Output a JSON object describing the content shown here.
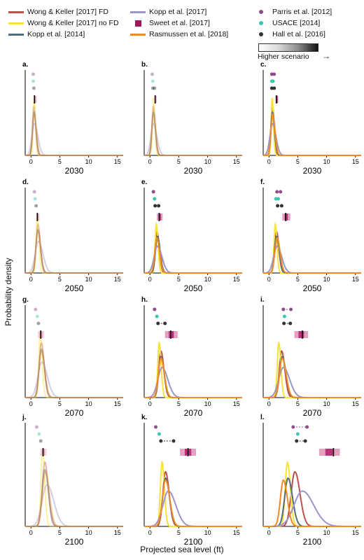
{
  "legend": {
    "col1": [
      {
        "label": "Wong & Keller [2017] FD",
        "color": "#c0504d"
      },
      {
        "label": "Wong & Keller [2017] no FD",
        "color": "#f5e23a"
      },
      {
        "label": "Kopp et al. [2014]",
        "color": "#4f6d7a"
      }
    ],
    "col2": [
      {
        "label": "Kopp et al. [2017]",
        "color": "#9d94c8"
      },
      {
        "label": "Sweet et al. [2017]",
        "color": "#a0155b"
      },
      {
        "label": "Rasmussen et al. [2018]",
        "color": "#f08a24"
      }
    ],
    "col3": [
      {
        "label": "Parris et al. [2012]",
        "color": "#8e4e8a"
      },
      {
        "label": "USACE [2014]",
        "color": "#3ec5b4"
      },
      {
        "label": "Hall et al. [2016]",
        "color": "#333333"
      }
    ],
    "scenario_label": "Higher scenario",
    "scenario_arrow": "→"
  },
  "ylabel": "Probability density",
  "xlabel": "Projected sea level (ft)",
  "chart_data": [
    {
      "panel": "a.",
      "type": "line",
      "xlabel": "2030",
      "xlim": [
        -1,
        16
      ],
      "xticks": [
        0,
        5,
        10,
        15
      ],
      "series_shown": [
        "Wong & Keller [2017] FD",
        "Wong & Keller [2017] no FD",
        "Kopp et al. [2014]",
        "Kopp et al. [2017]",
        "Rasmussen et al. [2018]"
      ],
      "faded": true,
      "density_peaks_ft": [
        0.5,
        0.55,
        0.55,
        0.6,
        0.55
      ],
      "parris_ft": [
        0.4
      ],
      "usace_ft": [
        0.4
      ],
      "hall_ft": [
        0.5
      ],
      "sweet_range_ft": [
        0.5,
        0.9
      ],
      "sweet_ft": 0.6
    },
    {
      "panel": "b.",
      "type": "line",
      "xlabel": "2030",
      "xlim": [
        -1,
        16
      ],
      "xticks": [
        0,
        5,
        10,
        15
      ],
      "series_shown": [
        "Wong & Keller [2017] FD",
        "Wong & Keller [2017] no FD",
        "Kopp et al. [2014]",
        "Kopp et al. [2017]",
        "Rasmussen et al. [2018]"
      ],
      "faded": true,
      "density_peaks_ft": [
        0.6,
        0.6,
        0.6,
        0.6,
        0.6
      ],
      "parris_ft": [
        0.4
      ],
      "usace_ft": [
        0.5
      ],
      "hall_ft": [
        0.5,
        0.8
      ],
      "sweet_range_ft": [
        0.7,
        1.2
      ],
      "sweet_ft": 0.9
    },
    {
      "panel": "c.",
      "type": "line",
      "xlabel": "2030",
      "xlim": [
        -1,
        16
      ],
      "xticks": [
        0,
        5,
        10,
        15
      ],
      "series_shown": [
        "Wong & Keller [2017] FD",
        "Wong & Keller [2017] no FD",
        "Kopp et al. [2014]",
        "Kopp et al. [2017]",
        "Rasmussen et al. [2018]"
      ],
      "faded": false,
      "density_peaks_ft": [
        0.6,
        0.55,
        0.6,
        0.6,
        0.65
      ],
      "parris_ft": [
        0.5,
        0.9
      ],
      "usace_ft": [
        0.5,
        0.7
      ],
      "hall_ft": [
        0.5,
        0.9
      ],
      "sweet_range_ft": [
        1.1,
        1.6
      ],
      "sweet_ft": 1.3
    },
    {
      "panel": "d.",
      "type": "line",
      "xlabel": "2050",
      "xlim": [
        -1,
        16
      ],
      "xticks": [
        0,
        5,
        10,
        15
      ],
      "series_shown": [
        "Wong & Keller [2017] FD",
        "Wong & Keller [2017] no FD",
        "Kopp et al. [2014]",
        "Kopp et al. [2017]",
        "Rasmussen et al. [2018]"
      ],
      "faded": true,
      "density_peaks_ft": [
        1.2,
        1.1,
        1.2,
        1.3,
        1.2
      ],
      "parris_ft": [
        0.6
      ],
      "usace_ft": [
        0.7
      ],
      "hall_ft": [
        0.9
      ],
      "sweet_range_ft": [
        0.9,
        1.5
      ],
      "sweet_ft": 1.1
    },
    {
      "panel": "e.",
      "type": "line",
      "xlabel": "2050",
      "xlim": [
        -1,
        16
      ],
      "xticks": [
        0,
        5,
        10,
        15
      ],
      "series_shown": [
        "Wong & Keller [2017] FD",
        "Wong & Keller [2017] no FD",
        "Kopp et al. [2014]",
        "Kopp et al. [2017]",
        "Rasmussen et al. [2018]"
      ],
      "faded": false,
      "density_peaks_ft": [
        1.2,
        1.1,
        1.3,
        1.3,
        1.2
      ],
      "parris_ft": [
        0.6
      ],
      "usace_ft": [
        0.8
      ],
      "hall_ft": [
        0.9,
        1.5
      ],
      "sweet_range_ft": [
        1.2,
        2.2
      ],
      "sweet_ft": 1.6
    },
    {
      "panel": "f.",
      "type": "line",
      "xlabel": "2050",
      "xlim": [
        -1,
        16
      ],
      "xticks": [
        0,
        5,
        10,
        15
      ],
      "series_shown": [
        "Wong & Keller [2017] FD",
        "Wong & Keller [2017] no FD",
        "Kopp et al. [2014]",
        "Kopp et al. [2017]",
        "Rasmussen et al. [2018]"
      ],
      "faded": false,
      "density_peaks_ft": [
        1.3,
        1.1,
        1.3,
        1.4,
        1.4
      ],
      "parris_ft": [
        1.4,
        2.0
      ],
      "usace_ft": [
        1.2,
        1.6
      ],
      "hall_ft": [
        1.5,
        2.2
      ],
      "sweet_range_ft": [
        2.3,
        3.7
      ],
      "sweet_ft": 2.9
    },
    {
      "panel": "g.",
      "type": "line",
      "xlabel": "2070",
      "xlim": [
        -1,
        16
      ],
      "xticks": [
        0,
        5,
        10,
        15
      ],
      "series_shown": [
        "Wong & Keller [2017] FD",
        "Wong & Keller [2017] no FD",
        "Kopp et al. [2014]",
        "Kopp et al. [2017]",
        "Rasmussen et al. [2018]"
      ],
      "faded": true,
      "density_peaks_ft": [
        1.8,
        1.6,
        1.8,
        1.9,
        1.8
      ],
      "parris_ft": [
        0.8
      ],
      "usace_ft": [
        1.1
      ],
      "hall_ft": [
        1.3
      ],
      "sweet_range_ft": [
        1.2,
        2.3
      ],
      "sweet_ft": 1.7
    },
    {
      "panel": "h.",
      "type": "line",
      "xlabel": "2070",
      "xlim": [
        -1,
        16
      ],
      "xticks": [
        0,
        5,
        10,
        15
      ],
      "series_shown": [
        "Wong & Keller [2017] FD",
        "Wong & Keller [2017] no FD",
        "Kopp et al. [2014]",
        "Kopp et al. [2017]",
        "Rasmussen et al. [2018]"
      ],
      "faded": false,
      "density_peaks_ft": [
        1.9,
        1.6,
        1.9,
        2.1,
        1.9
      ],
      "parris_ft": [
        0.8
      ],
      "usace_ft": [
        1.2
      ],
      "hall_ft": [
        1.4,
        2.6
      ],
      "sweet_range_ft": [
        2.6,
        4.8
      ],
      "sweet_ft": 3.6
    },
    {
      "panel": "i.",
      "type": "line",
      "xlabel": "2070",
      "xlim": [
        -1,
        16
      ],
      "xticks": [
        0,
        5,
        10,
        15
      ],
      "series_shown": [
        "Wong & Keller [2017] FD",
        "Wong & Keller [2017] no FD",
        "Kopp et al. [2014]",
        "Kopp et al. [2017]",
        "Rasmussen et al. [2018]"
      ],
      "faded": false,
      "density_peaks_ft": [
        2.2,
        1.7,
        2.3,
        2.5,
        2.3
      ],
      "parris_ft": [
        2.5,
        3.8
      ],
      "usace_ft": [
        2.7
      ],
      "hall_ft": [
        2.6,
        3.7
      ],
      "sweet_range_ft": [
        4.4,
        6.8
      ],
      "sweet_ft": 5.8
    },
    {
      "panel": "j.",
      "type": "line",
      "xlabel": "2100",
      "xlim": [
        -1,
        16
      ],
      "xticks": [
        0,
        5,
        10,
        15
      ],
      "series_shown": [
        "Wong & Keller [2017] FD",
        "Wong & Keller [2017] no FD",
        "Kopp et al. [2014]",
        "Kopp et al. [2017]",
        "Rasmussen et al. [2018]"
      ],
      "faded": true,
      "density_peaks_ft": [
        2.4,
        2.0,
        2.4,
        2.8,
        2.5
      ],
      "parris_ft": [
        1.0
      ],
      "usace_ft": [
        1.4
      ],
      "hall_ft": [
        1.7
      ],
      "sweet_range_ft": [
        1.6,
        2.7
      ],
      "sweet_ft": 2.1
    },
    {
      "panel": "k.",
      "type": "line",
      "xlabel": "2100",
      "xlim": [
        -1,
        16
      ],
      "xticks": [
        0,
        5,
        10,
        15
      ],
      "series_shown": [
        "Wong & Keller [2017] FD",
        "Wong & Keller [2017] no FD",
        "Kopp et al. [2014]",
        "Kopp et al. [2017]",
        "Rasmussen et al. [2018]"
      ],
      "faded": false,
      "density_peaks_ft": [
        2.7,
        2.1,
        2.7,
        3.2,
        2.7
      ],
      "parris_ft": [
        1.0
      ],
      "usace_ft": [
        1.6
      ],
      "hall_ft": [
        1.9,
        4.1
      ],
      "sweet_range_ft": [
        5.2,
        8.0
      ],
      "sweet_ft": 6.6
    },
    {
      "panel": "l.",
      "type": "line",
      "xlabel": "2100",
      "xlim": [
        -1,
        16
      ],
      "xticks": [
        0,
        5,
        10,
        15
      ],
      "series_shown": [
        "Wong & Keller [2017] FD",
        "Wong & Keller [2017] no FD",
        "Kopp et al. [2014]",
        "Kopp et al. [2017]",
        "Rasmussen et al. [2018]"
      ],
      "faded": false,
      "density_peaks_ft": [
        4.5,
        3.2,
        3.3,
        5.8,
        2.5
      ],
      "parris_ft": [
        4.2,
        6.6
      ],
      "usace_ft": [
        5.0
      ],
      "hall_ft": [
        4.8,
        6.3
      ],
      "sweet_range_ft": [
        8.7,
        12.3
      ],
      "sweet_ft": 11.2
    }
  ]
}
